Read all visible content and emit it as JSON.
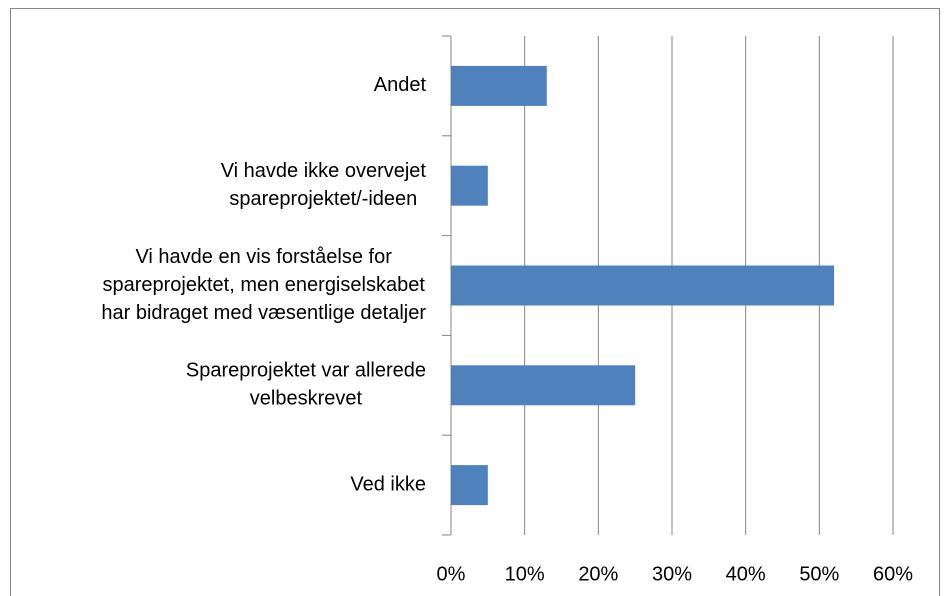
{
  "chart_data": {
    "type": "bar",
    "orientation": "horizontal",
    "categories": [
      [
        "Andet"
      ],
      [
        "Vi havde ikke overvejet",
        "spareprojektet/-ideen"
      ],
      [
        "Vi havde en vis forståelse for",
        "spareprojektet, men energiselskabet",
        "har bidraget med væsentlige detaljer"
      ],
      [
        "Spareprojektet var allerede",
        "velbeskrevet"
      ],
      [
        "Ved ikke"
      ]
    ],
    "values": [
      13,
      5,
      52,
      25,
      5
    ],
    "color": "#4f81bd",
    "xlim": [
      0,
      60
    ],
    "xticks": [
      {
        "value": 0,
        "label": "0%"
      },
      {
        "value": 10,
        "label": "10%"
      },
      {
        "value": 20,
        "label": "20%"
      },
      {
        "value": 30,
        "label": "30%"
      },
      {
        "value": 40,
        "label": "40%"
      },
      {
        "value": 50,
        "label": "50%"
      },
      {
        "value": 60,
        "label": "60%"
      }
    ],
    "grid": true
  }
}
